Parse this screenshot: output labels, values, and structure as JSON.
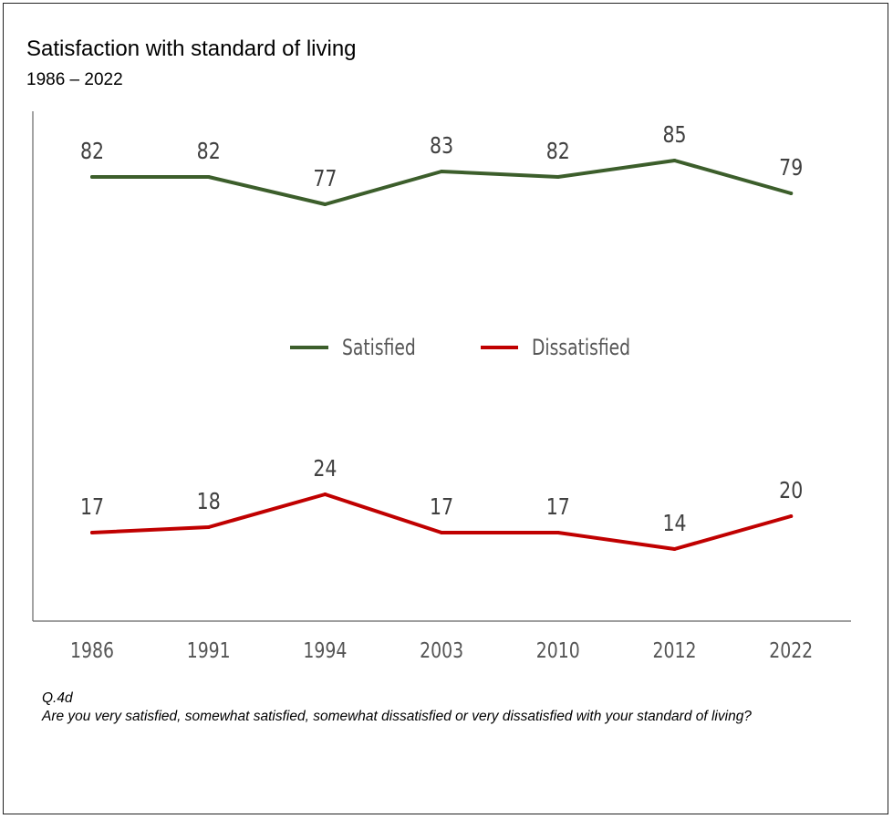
{
  "title": "Satisfaction with standard of living",
  "subtitle": "1986 – 2022",
  "chart_data": {
    "type": "line",
    "title": "Satisfaction with standard of living",
    "subtitle": "1986 – 2022",
    "categories": [
      "1986",
      "1991",
      "1994",
      "2003",
      "2010",
      "2012",
      "2022"
    ],
    "series": [
      {
        "name": "Satisfied",
        "color": "#3c5e2b",
        "values": [
          82,
          82,
          77,
          83,
          82,
          85,
          79
        ]
      },
      {
        "name": "Dissatisfied",
        "color": "#c00000",
        "values": [
          17,
          18,
          24,
          17,
          17,
          14,
          20
        ]
      }
    ],
    "legend": "center",
    "grid": false,
    "ylim": [
      0,
      100
    ],
    "data_labels": true
  },
  "notes": {
    "question_id": "Q.4d",
    "question_text": "Are you very satisfied, somewhat satisfied, somewhat dissatisfied or very dissatisfied with your standard of living?"
  }
}
